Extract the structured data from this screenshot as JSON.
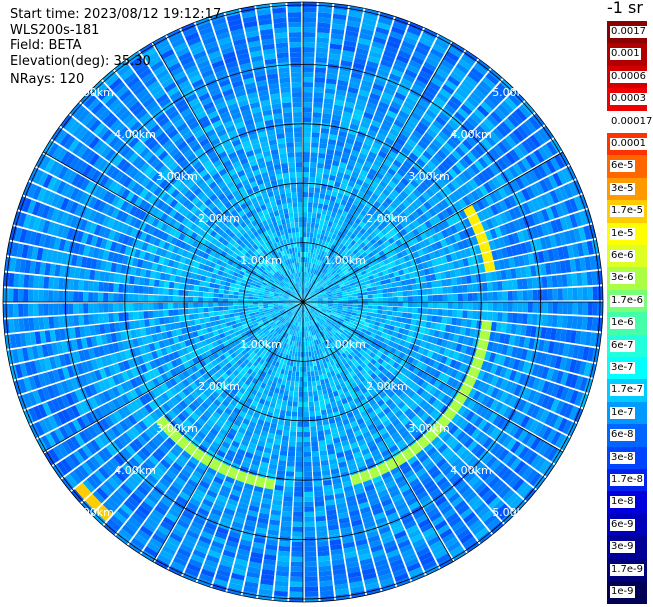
{
  "info": {
    "start_time": "Start time: 2023/08/12 19:12:17",
    "instrument": "WLS200s-181",
    "field": "Field: BETA",
    "elevation": "Elevation(deg): 35.30",
    "nrays": "NRays: 120"
  },
  "ppi": {
    "ring_labels": [
      "1.00km",
      "2.00km",
      "3.00km",
      "4.00km",
      "5.00km"
    ],
    "max_range_km": 5
  },
  "colorbar": {
    "title": "-1 sr",
    "labels": [
      "0.0017",
      "0.001",
      "0.0006",
      "0.0003",
      "0.00017",
      "0.0001",
      "6e-5",
      "3e-5",
      "1.7e-5",
      "1e-5",
      "6e-6",
      "3e-6",
      "1.7e-6",
      "1e-6",
      "6e-7",
      "3e-7",
      "1.7e-7",
      "1e-7",
      "6e-8",
      "3e-8",
      "1.7e-8",
      "1e-8",
      "6e-9",
      "3e-9",
      "1.7e-9",
      "1e-9"
    ],
    "colors": [
      "#8b0000",
      "#b00000",
      "#d40000",
      "#f00000",
      "#ffffff",
      "#ff3300",
      "#ff6600",
      "#ff9900",
      "#ffcc00",
      "#ffff00",
      "#ddff22",
      "#aaff44",
      "#77ff77",
      "#44ffaa",
      "#22ffdd",
      "#00ffff",
      "#00ccff",
      "#0099ff",
      "#0066ff",
      "#0044ff",
      "#0022ee",
      "#0000dd",
      "#0000bb",
      "#000099",
      "#000077",
      "#000055"
    ]
  }
}
